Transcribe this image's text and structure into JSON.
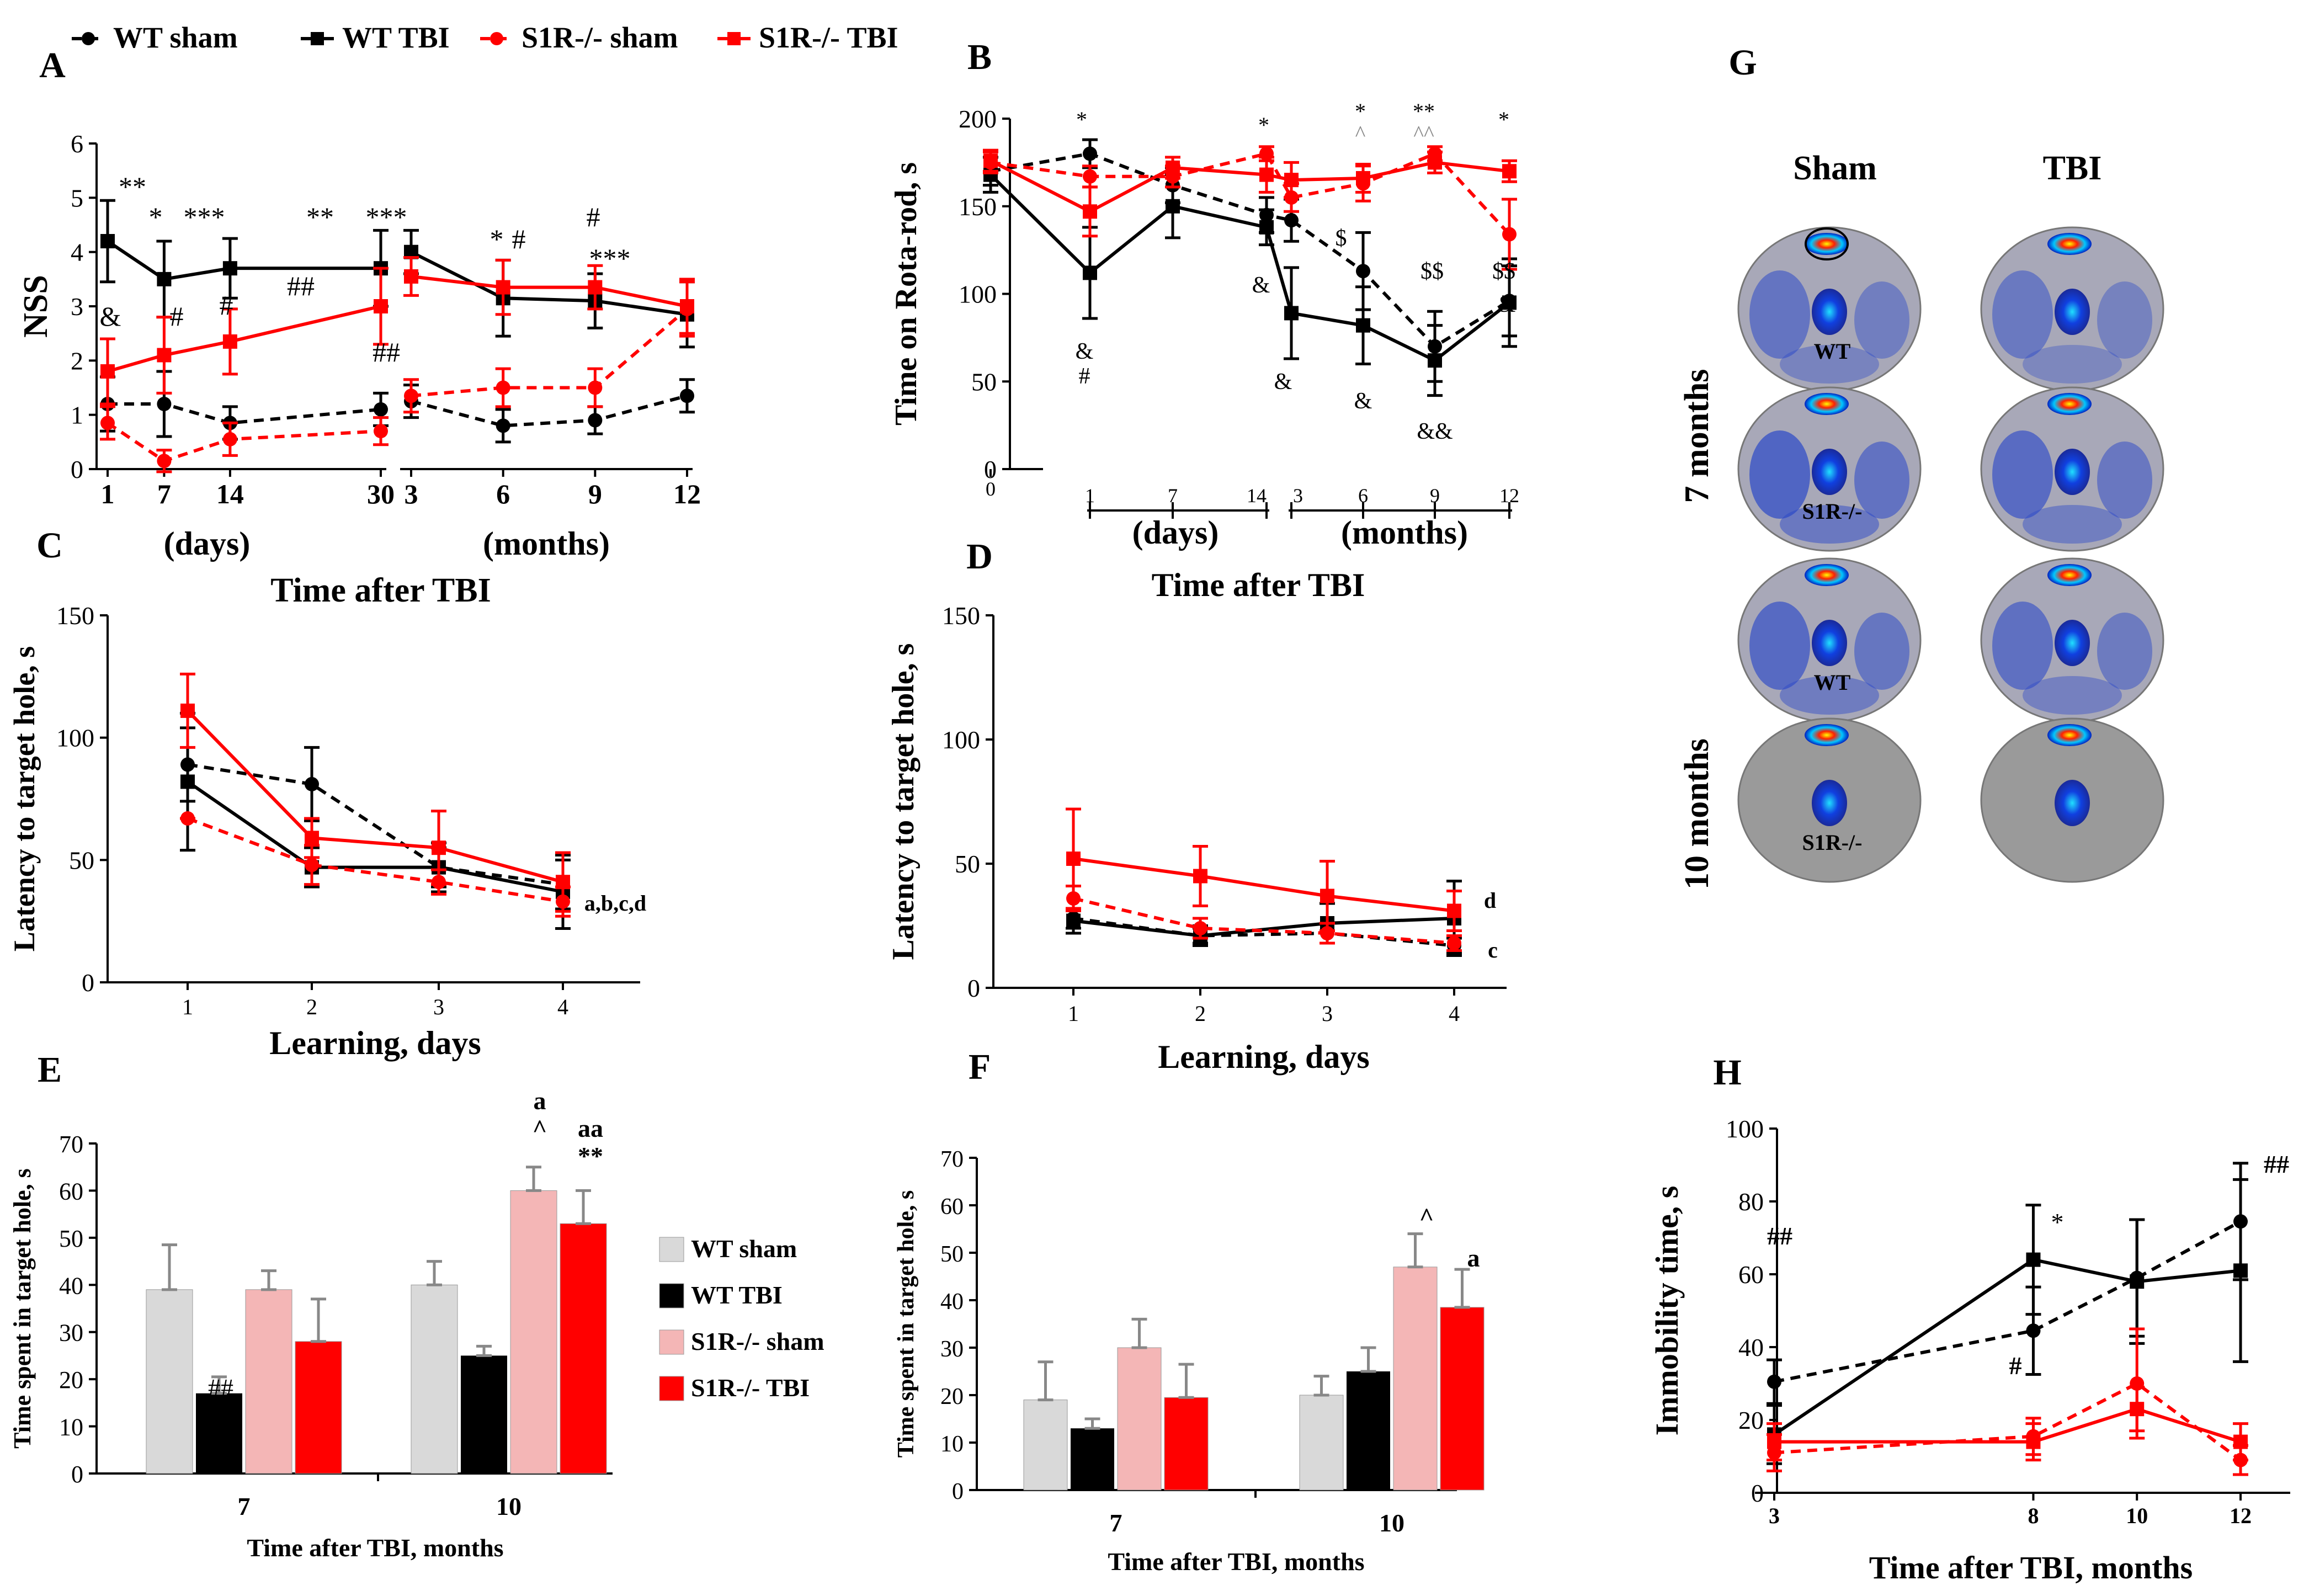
{
  "legend_top": [
    {
      "label": "WT sham",
      "color": "#000000",
      "dashed": true,
      "marker": "circle"
    },
    {
      "label": "WT TBI",
      "color": "#000000",
      "dashed": false,
      "marker": "square"
    },
    {
      "label": "S1R-/- sham",
      "color": "#ff0000",
      "dashed": true,
      "marker": "circle"
    },
    {
      "label": "S1R-/- TBI",
      "color": "#ff0000",
      "dashed": false,
      "marker": "square"
    }
  ],
  "colors": {
    "wt": "#000000",
    "s1r": "#ff0000",
    "bar_wt_sham": "#d9d9d9",
    "bar_wt_tbi": "#000000",
    "bar_s1r_sham": "#f4b6b6",
    "bar_s1r_tbi": "#ff0000"
  },
  "chart_data": [
    {
      "id": "A",
      "panel_label": "A",
      "type": "line",
      "ylabel": "NSS",
      "ylim": [
        0,
        6
      ],
      "yticks": [
        "0",
        "1",
        "2",
        "3",
        "4",
        "5",
        "6"
      ],
      "xlabel": "Time after TBI",
      "group_labels": [
        "(days)",
        "(months)"
      ],
      "segments": [
        {
          "x_ticks": [
            "1",
            "7",
            "14",
            "30"
          ],
          "x": [
            1,
            7,
            14,
            30
          ],
          "series": [
            {
              "name": "WT sham",
              "values": [
                1.2,
                1.2,
                0.85,
                1.1
              ],
              "err": [
                0.5,
                0.6,
                0.3,
                0.3
              ]
            },
            {
              "name": "WT TBI",
              "values": [
                4.2,
                3.5,
                3.7,
                3.7
              ],
              "err": [
                0.75,
                0.7,
                0.55,
                0.7
              ]
            },
            {
              "name": "S1R-/- sham",
              "values": [
                0.85,
                0.15,
                0.55,
                0.7
              ],
              "err": [
                0.3,
                0.2,
                0.3,
                0.25
              ]
            },
            {
              "name": "S1R-/- TBI",
              "values": [
                1.8,
                2.1,
                2.35,
                3.0
              ],
              "err": [
                0.6,
                0.7,
                0.6,
                0.7
              ]
            }
          ]
        },
        {
          "x_ticks": [
            "3",
            "6",
            "9",
            "12"
          ],
          "x": [
            3,
            6,
            9,
            12
          ],
          "series": [
            {
              "name": "WT sham",
              "values": [
                1.25,
                0.8,
                0.9,
                1.35
              ],
              "err": [
                0.3,
                0.3,
                0.25,
                0.3
              ]
            },
            {
              "name": "WT TBI",
              "values": [
                4.0,
                3.15,
                3.1,
                2.85
              ],
              "err": [
                0.4,
                0.7,
                0.5,
                0.6
              ]
            },
            {
              "name": "S1R-/- sham",
              "values": [
                1.35,
                1.5,
                1.5,
                2.95
              ],
              "err": [
                0.3,
                0.35,
                0.35,
                0.5
              ]
            },
            {
              "name": "S1R-/- TBI",
              "values": [
                3.55,
                3.35,
                3.35,
                3.0
              ],
              "err": [
                0.35,
                0.5,
                0.4,
                0.5
              ]
            }
          ]
        }
      ],
      "annotations": [
        "**",
        "*",
        "***",
        "**",
        "***",
        "&",
        "#",
        "#",
        "##",
        "##",
        "*",
        "#",
        "***",
        "#"
      ]
    },
    {
      "id": "B",
      "panel_label": "B",
      "type": "line",
      "ylabel": "Time on Rota-rod, s",
      "ylim": [
        0,
        200
      ],
      "yticks": [
        "0",
        "50",
        "100",
        "150",
        "200"
      ],
      "xlabel": "Time after TBI",
      "group_labels": [
        "(days)",
        "(months)"
      ],
      "x_ticks": [
        "0",
        "1",
        "7",
        "14",
        "3",
        "6",
        "9",
        "12"
      ],
      "series": [
        {
          "name": "WT sham",
          "values": [
            170,
            180,
            162,
            145,
            142,
            113,
            70,
            96
          ],
          "err": [
            8,
            8,
            10,
            10,
            12,
            22,
            20,
            20
          ]
        },
        {
          "name": "WT TBI",
          "values": [
            168,
            112,
            150,
            138,
            89,
            82,
            62,
            95
          ],
          "err": [
            10,
            26,
            18,
            10,
            26,
            22,
            20,
            25
          ]
        },
        {
          "name": "S1R-/- sham",
          "values": [
            175,
            167,
            167,
            180,
            155,
            163,
            180,
            134
          ],
          "err": [
            6,
            6,
            6,
            4,
            8,
            10,
            4,
            20
          ]
        },
        {
          "name": "S1R-/- TBI",
          "values": [
            176,
            147,
            172,
            168,
            165,
            166,
            175,
            170
          ],
          "err": [
            6,
            14,
            6,
            10,
            10,
            8,
            6,
            6
          ]
        }
      ],
      "annotations": [
        "*",
        "*",
        "*",
        "^",
        "**",
        "^^",
        "*",
        "&",
        "#",
        "&",
        "&",
        "&",
        "&&",
        "$",
        "$$",
        "$$",
        "&"
      ]
    },
    {
      "id": "C",
      "panel_label": "C",
      "type": "line",
      "ylabel": "Latency to target hole, s",
      "ylim": [
        0,
        150
      ],
      "yticks": [
        "0",
        "50",
        "100",
        "150"
      ],
      "xlabel": "Learning, days",
      "x_ticks": [
        "1",
        "2",
        "3",
        "4"
      ],
      "series": [
        {
          "name": "WT sham",
          "values": [
            89,
            81,
            47,
            40
          ],
          "err": [
            15,
            15,
            10,
            10
          ]
        },
        {
          "name": "WT TBI",
          "values": [
            82,
            47,
            47,
            37
          ],
          "err": [
            28,
            8,
            8,
            15
          ]
        },
        {
          "name": "S1R-/- sham",
          "values": [
            67,
            48,
            41,
            33
          ],
          "err": [
            0,
            8,
            5,
            6
          ]
        },
        {
          "name": "S1R-/- TBI",
          "values": [
            111,
            59,
            55,
            41
          ],
          "err": [
            15,
            8,
            15,
            12
          ]
        }
      ],
      "annotations": [
        "a,b,c,d"
      ]
    },
    {
      "id": "D",
      "panel_label": "D",
      "type": "line",
      "ylabel": "Latency to target hole, s",
      "ylim": [
        0,
        150
      ],
      "yticks": [
        "0",
        "50",
        "100",
        "150"
      ],
      "xlabel": "Learning, days",
      "x_ticks": [
        "1",
        "2",
        "3",
        "4"
      ],
      "series": [
        {
          "name": "WT sham",
          "values": [
            28,
            21,
            22,
            17
          ],
          "err": [
            4,
            3,
            4,
            3
          ]
        },
        {
          "name": "WT TBI",
          "values": [
            27,
            21,
            26,
            28
          ],
          "err": [
            5,
            4,
            8,
            15
          ]
        },
        {
          "name": "S1R-/- sham",
          "values": [
            36,
            24,
            22,
            18
          ],
          "err": [
            5,
            4,
            4,
            3
          ]
        },
        {
          "name": "S1R-/- TBI",
          "values": [
            52,
            45,
            37,
            31
          ],
          "err": [
            20,
            12,
            14,
            8
          ]
        }
      ],
      "annotations": [
        "d",
        "c"
      ]
    },
    {
      "id": "E",
      "panel_label": "E",
      "type": "bar",
      "ylabel": "Time spent in target hole, s",
      "ylim": [
        0,
        70
      ],
      "yticks": [
        "0",
        "10",
        "20",
        "30",
        "40",
        "50",
        "60",
        "70"
      ],
      "xlabel": "Time after TBI, months",
      "categories": [
        "7",
        "10"
      ],
      "series": [
        {
          "name": "WT  sham",
          "values": [
            39,
            40
          ],
          "err": [
            9.5,
            5
          ]
        },
        {
          "name": "WT TBI",
          "values": [
            17,
            25
          ],
          "err": [
            3.5,
            2
          ]
        },
        {
          "name": "S1R-/-  sham",
          "values": [
            39,
            60
          ],
          "err": [
            4,
            5
          ]
        },
        {
          "name": "S1R-/- TBI",
          "values": [
            28,
            53
          ],
          "err": [
            9,
            7
          ]
        }
      ],
      "annotations": [
        "##",
        "a",
        "^",
        "aa",
        "**"
      ]
    },
    {
      "id": "F",
      "panel_label": "F",
      "type": "bar",
      "ylabel": "Time spent in target hole, s",
      "ylim": [
        0,
        70
      ],
      "yticks": [
        "0",
        "10",
        "20",
        "30",
        "40",
        "50",
        "60",
        "70"
      ],
      "xlabel": "Time after TBI, months",
      "categories": [
        "7",
        "10"
      ],
      "series": [
        {
          "name": "WT sham",
          "values": [
            19,
            20
          ],
          "err": [
            8,
            4
          ]
        },
        {
          "name": "WT TBI",
          "values": [
            13,
            25
          ],
          "err": [
            2,
            5
          ]
        },
        {
          "name": "S1R-/- sham",
          "values": [
            30,
            47
          ],
          "err": [
            6,
            7
          ]
        },
        {
          "name": "S1R-/- TBI",
          "values": [
            19.5,
            38.5
          ],
          "err": [
            7,
            8
          ]
        }
      ],
      "annotations": [
        "^",
        "a"
      ]
    },
    {
      "id": "H",
      "panel_label": "H",
      "type": "line",
      "ylabel": "Immobility time, s",
      "ylim": [
        0,
        100
      ],
      "yticks": [
        "0",
        "20",
        "40",
        "60",
        "80",
        "100"
      ],
      "xlabel": "Time after TBI, months",
      "x_ticks": [
        "3",
        "8",
        "10",
        "12"
      ],
      "x": [
        3,
        8,
        10,
        12
      ],
      "series": [
        {
          "name": "WT sham",
          "values": [
            30.5,
            44.5,
            59,
            74.5
          ],
          "err": [
            6,
            12,
            16,
            16
          ]
        },
        {
          "name": "WT TBI",
          "values": [
            16,
            64,
            58,
            61
          ],
          "err": [
            8,
            15,
            17,
            25
          ]
        },
        {
          "name": "S1R-/- sham",
          "values": [
            11,
            15.5,
            30,
            9
          ],
          "err": [
            5,
            5,
            15,
            4
          ]
        },
        {
          "name": "S1R-/- TBI",
          "values": [
            14,
            14,
            23,
            14
          ],
          "err": [
            5,
            5,
            6,
            5
          ]
        }
      ],
      "annotations": [
        "##",
        "*",
        "#",
        "##"
      ]
    }
  ],
  "heatmap": {
    "panel_label": "G",
    "columns": [
      "Sham",
      "TBI"
    ],
    "row_groups": [
      "7 months",
      "10 months"
    ],
    "row_labels": [
      "WT",
      "S1R-/-",
      "WT",
      "S1R-/-"
    ]
  }
}
